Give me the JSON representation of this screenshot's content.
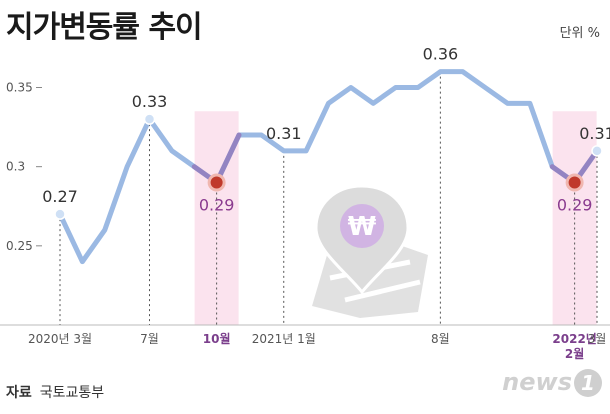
{
  "title": "지가변동률 추이",
  "unit_label": "단위 %",
  "source": {
    "key": "자료",
    "value": "국토교통부"
  },
  "logo_text": "news",
  "logo_mark": "1",
  "colors": {
    "line": "#9bb9e3",
    "highlight_band": "#fbe3ee",
    "highlight_point": "#c0392b",
    "highlight_text": "#8a3b8f",
    "normal_point": "#cfe0f5"
  },
  "chart_data": {
    "type": "line",
    "title": "지가변동률 추이",
    "ylabel": "",
    "xlabel": "",
    "ylim": [
      0.2,
      0.38
    ],
    "yticks": [
      0.25,
      0.3,
      0.35
    ],
    "ytick_labels": [
      "0.25",
      "0.3",
      "0.35"
    ],
    "x_index_range": [
      0,
      24
    ],
    "values": [
      0.27,
      0.24,
      0.26,
      0.3,
      0.33,
      0.31,
      0.3,
      0.29,
      0.32,
      0.32,
      0.31,
      0.31,
      0.34,
      0.35,
      0.34,
      0.35,
      0.35,
      0.36,
      0.36,
      0.35,
      0.34,
      0.34,
      0.3,
      0.29,
      0.31
    ],
    "x_ticks": [
      {
        "index": 0,
        "label": "2020년 3월",
        "highlight": false
      },
      {
        "index": 4,
        "label": "7월",
        "highlight": false
      },
      {
        "index": 7,
        "label": "10월",
        "highlight": true
      },
      {
        "index": 10,
        "label": "2021년 1월",
        "highlight": false
      },
      {
        "index": 17,
        "label": "8월",
        "highlight": false
      },
      {
        "index": 23,
        "label": "2022년\n2월",
        "highlight": true
      },
      {
        "index": 24,
        "label": "3월",
        "highlight": false
      }
    ],
    "annotations": [
      {
        "index": 0,
        "value": 0.27,
        "label": "0.27",
        "highlight": false,
        "dot": true
      },
      {
        "index": 4,
        "value": 0.33,
        "label": "0.33",
        "highlight": false,
        "dot": true
      },
      {
        "index": 7,
        "value": 0.29,
        "label": "0.29",
        "highlight": true,
        "dot": true
      },
      {
        "index": 10,
        "value": 0.31,
        "label": "0.31",
        "highlight": false,
        "dot": false
      },
      {
        "index": 17,
        "value": 0.36,
        "label": "0.36",
        "highlight": false,
        "dot": false
      },
      {
        "index": 23,
        "value": 0.29,
        "label": "0.29",
        "highlight": true,
        "dot": true
      },
      {
        "index": 24,
        "value": 0.31,
        "label": "0.31",
        "highlight": false,
        "dot": true
      }
    ],
    "highlight_bands": [
      7,
      23
    ],
    "grid": false
  }
}
